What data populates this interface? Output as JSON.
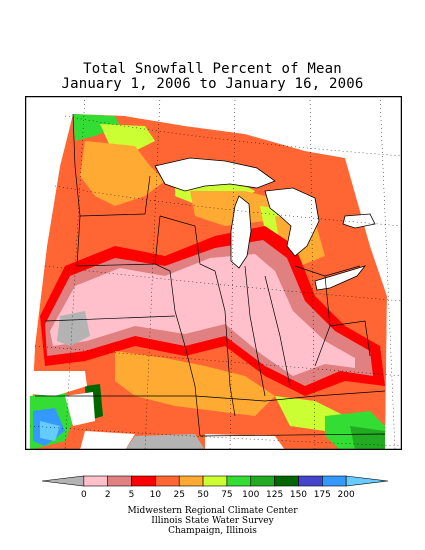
{
  "title": {
    "line1": "Total Snowfall Percent of Mean",
    "line2": "January 1, 2006 to January 16, 2006"
  },
  "legend": {
    "ticks": [
      "0",
      "2",
      "5",
      "10",
      "25",
      "50",
      "75",
      "100",
      "125",
      "150",
      "175",
      "200"
    ],
    "colors": [
      "#b3b3b3",
      "#ffc0cb",
      "#e08080",
      "#ff0000",
      "#ff6633",
      "#ffaa33",
      "#ccff33",
      "#33dd33",
      "#22aa22",
      "#006600",
      "#4444cc",
      "#3399ff",
      "#66ccff"
    ]
  },
  "map_colors": {
    "gray": "#b3b3b3",
    "pink": "#ffc0cb",
    "rose": "#e08080",
    "red": "#ff0000",
    "orange_red": "#ff6633",
    "orange": "#ffaa33",
    "yellow_green": "#ccff33",
    "green": "#33dd33",
    "medium_green": "#22aa22",
    "dark_green": "#006600",
    "blue": "#3399ff",
    "light_blue": "#66ccff",
    "water": "#ffffff"
  },
  "credits": {
    "line1": "Midwestern Regional Climate Center",
    "line2": "Illinois State Water Survey",
    "line3": "Champaign, Illinois"
  }
}
